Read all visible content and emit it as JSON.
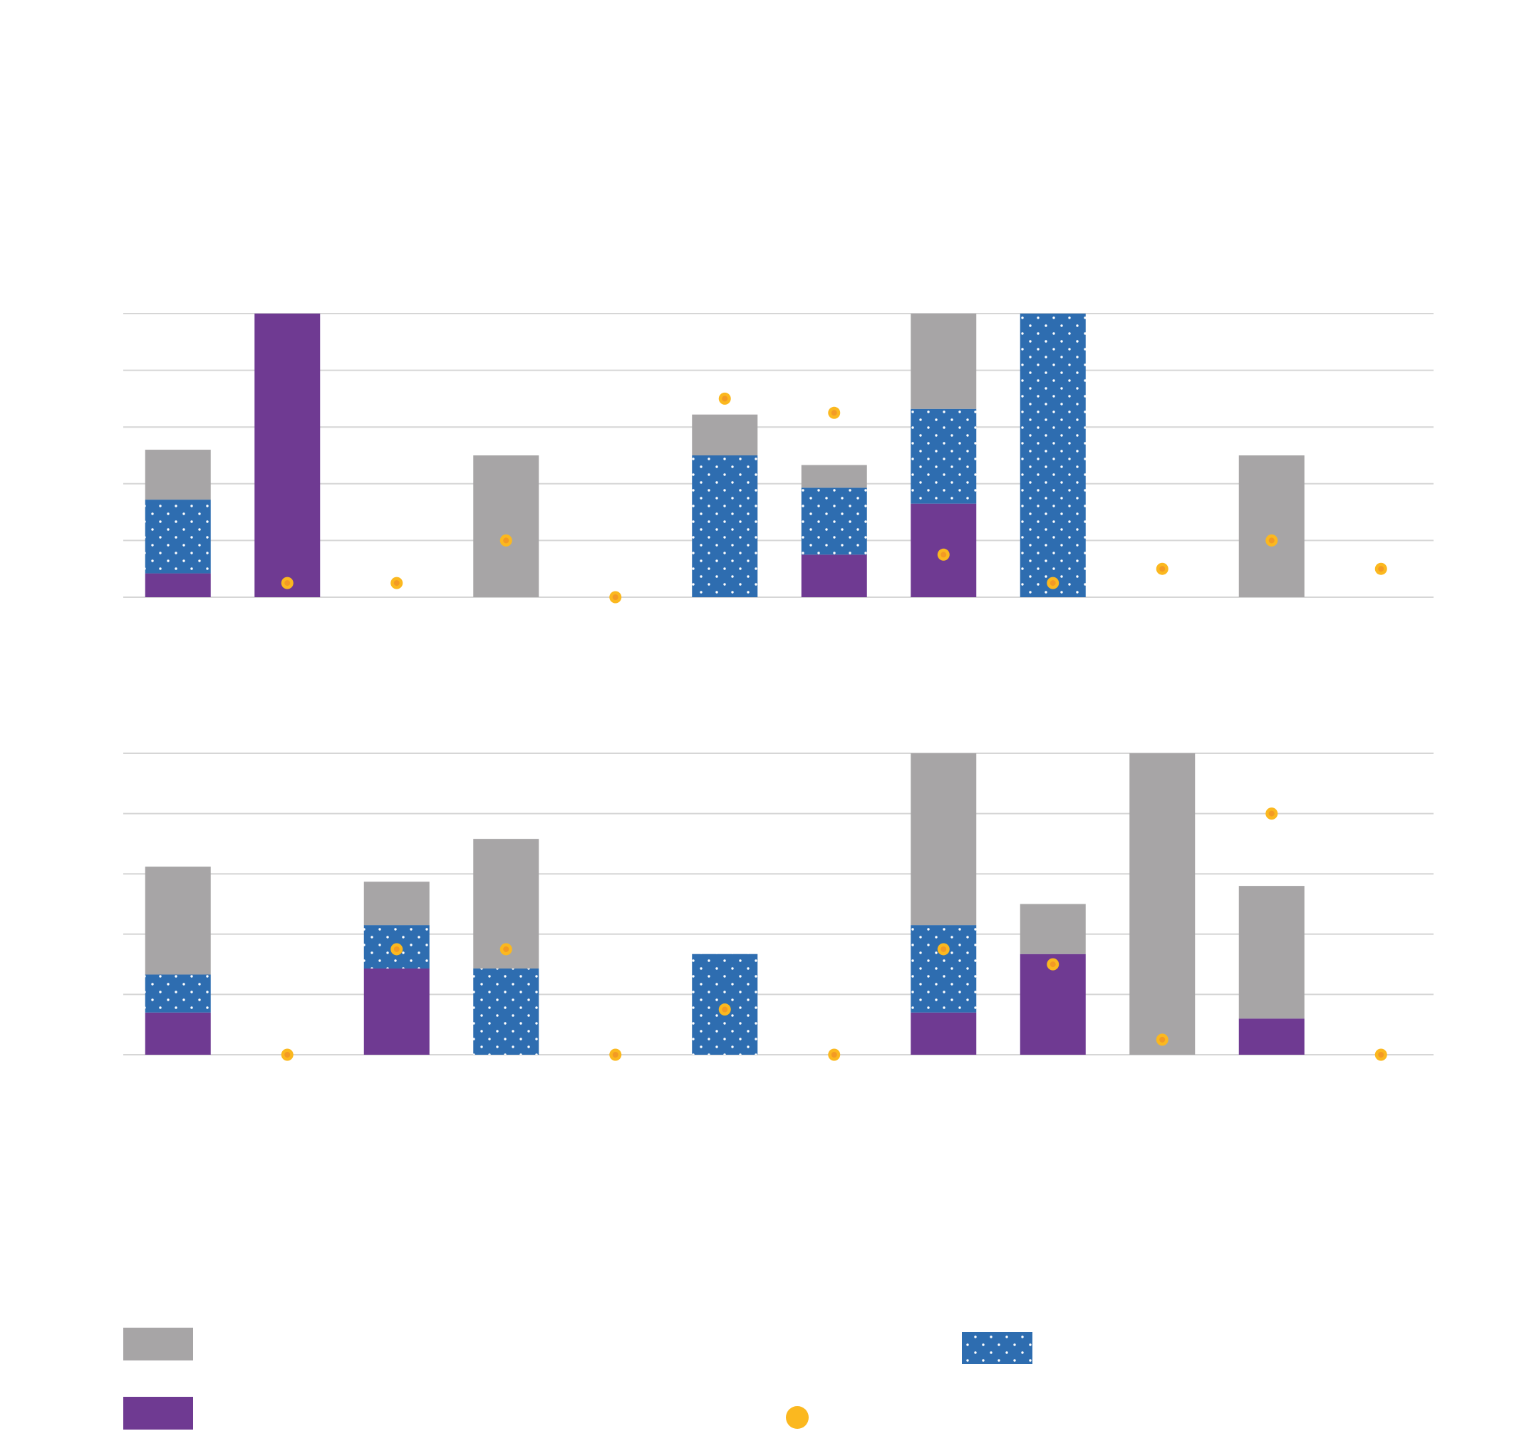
{
  "colors": {
    "gray": "#a7a5a6",
    "purple": "#6f3a92",
    "blue": "#2e6db0",
    "dot": "#ffffff",
    "marker_ring": "#fbb81f",
    "marker_core": "#f39a25",
    "grid": "#d6d6d6"
  },
  "legend": {
    "items": [
      {
        "key": "gray",
        "label": ""
      },
      {
        "key": "purple",
        "label": ""
      },
      {
        "key": "blue",
        "label": ""
      },
      {
        "key": "marker",
        "label": ""
      }
    ]
  },
  "chart_data": [
    {
      "type": "bar",
      "stacked": true,
      "title": "",
      "xlabel": "",
      "ylabel": "",
      "ylim": [
        0,
        5
      ],
      "grid": true,
      "legend": "bottom",
      "categories": [
        "",
        "",
        "",
        "",
        "",
        "",
        "",
        "",
        "",
        "",
        "",
        ""
      ],
      "series": [
        {
          "key": "purple",
          "values": [
            0.42,
            5.0,
            0,
            0,
            0,
            0,
            0.75,
            1.65,
            0,
            0,
            0,
            0
          ]
        },
        {
          "key": "blue",
          "values": [
            1.3,
            0,
            0,
            0,
            0,
            2.5,
            1.18,
            1.67,
            5.0,
            0,
            0,
            0
          ]
        },
        {
          "key": "gray",
          "values": [
            0.88,
            0,
            0,
            2.5,
            0,
            0.72,
            0.4,
            1.68,
            0,
            0,
            2.5,
            0
          ]
        },
        {
          "key": "marker",
          "type": "scatter",
          "values": [
            null,
            0.25,
            0.25,
            1.0,
            0.0,
            3.5,
            3.25,
            0.75,
            0.25,
            0.5,
            1.0,
            0.5
          ]
        }
      ]
    },
    {
      "type": "bar",
      "stacked": true,
      "title": "",
      "xlabel": "",
      "ylabel": "",
      "ylim": [
        0,
        5
      ],
      "grid": true,
      "legend": "bottom",
      "categories": [
        "",
        "",
        "",
        "",
        "",
        "",
        "",
        "",
        "",
        "",
        "",
        ""
      ],
      "series": [
        {
          "key": "purple",
          "values": [
            0.7,
            0,
            1.43,
            0,
            0,
            0,
            0,
            0.7,
            1.67,
            0,
            0.6,
            0
          ]
        },
        {
          "key": "blue",
          "values": [
            0.63,
            0,
            0.72,
            1.43,
            0,
            1.67,
            0,
            1.45,
            0,
            0,
            0,
            0
          ]
        },
        {
          "key": "gray",
          "values": [
            1.79,
            0,
            0.72,
            2.15,
            0,
            0,
            0,
            2.85,
            0.83,
            5.0,
            2.2,
            0
          ]
        },
        {
          "key": "marker",
          "type": "scatter",
          "values": [
            null,
            0.0,
            1.75,
            1.75,
            0.0,
            0.75,
            0.0,
            1.75,
            1.5,
            0.25,
            4.0,
            0.0
          ]
        }
      ]
    }
  ]
}
